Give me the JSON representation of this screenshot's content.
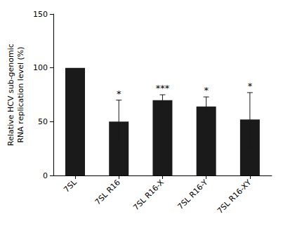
{
  "chart_data": {
    "type": "bar",
    "categories": [
      "7SL",
      "7SL R16",
      "7SL R16-X",
      "7SL R16-Y",
      "7SL R16-XY"
    ],
    "values": [
      100,
      50,
      70,
      64,
      52
    ],
    "errors": [
      0,
      20,
      5,
      9,
      25
    ],
    "significance": [
      null,
      "*",
      "***",
      "*",
      "*"
    ],
    "ylabel": "Relative HCV sub-genomic\nRNA replication level (%)",
    "color": "#1a1a1a",
    "ylim": [
      0,
      150
    ],
    "yticks": [
      0,
      50,
      100,
      150
    ],
    "grid": false
  }
}
